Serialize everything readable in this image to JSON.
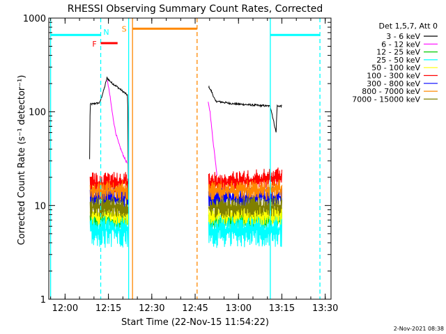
{
  "chart_data": {
    "type": "line",
    "title": "RHESSI Observing Summary Count Rates, Corrected",
    "xlabel": "Start Time (22-Nov-15 11:54:22)",
    "ylabel": "Corrected Count Rate (s⁻¹ detector⁻¹)",
    "xlim": [
      "11:54:22",
      "13:32:00"
    ],
    "ylim": [
      1,
      1000
    ],
    "yscale": "log",
    "x_ticks": [
      "12:00",
      "12:15",
      "12:30",
      "12:45",
      "13:00",
      "13:15",
      "13:30"
    ],
    "y_ticks": [
      "1",
      "10",
      "100",
      "1000"
    ],
    "legend_title": "Det 1,5,7, Att 0",
    "legend_position": "right",
    "timestamp": "2-Nov-2021 08:38",
    "series": [
      {
        "name": "3 - 6 keV",
        "color": "#000000",
        "points": [
          [
            "12:08:30",
            31
          ],
          [
            "12:08:40",
            120
          ],
          [
            "12:12:00",
            125
          ],
          [
            "12:13:30",
            175
          ],
          [
            "12:14:30",
            230
          ],
          [
            "12:16:00",
            205
          ],
          [
            "12:18:00",
            185
          ],
          [
            "12:20:00",
            165
          ],
          [
            "12:21:40",
            150
          ],
          [
            "12:22:00",
            7
          ],
          [
            "12:22:20",
            null
          ],
          [
            "12:49:40",
            185
          ],
          [
            "12:50:40",
            165
          ],
          [
            "12:52:00",
            130
          ],
          [
            "12:58:00",
            122
          ],
          [
            "13:05:00",
            118
          ],
          [
            "13:11:00",
            115
          ],
          [
            "13:13:00",
            60
          ],
          [
            "13:13:20",
            115
          ],
          [
            "13:15:00",
            115
          ]
        ]
      },
      {
        "name": "6 - 12 keV",
        "color": "#ff00ff",
        "points": [
          [
            "12:14:40",
            215
          ],
          [
            "12:15:30",
            150
          ],
          [
            "12:16:30",
            90
          ],
          [
            "12:17:30",
            60
          ],
          [
            "12:18:40",
            45
          ],
          [
            "12:20:00",
            35
          ],
          [
            "12:21:30",
            28
          ],
          [
            "12:21:50",
            null
          ],
          [
            "12:49:30",
            125
          ],
          [
            "12:50:10",
            100
          ],
          [
            "12:51:00",
            55
          ],
          [
            "12:52:00",
            30
          ],
          [
            "12:52:40",
            20
          ]
        ]
      },
      {
        "name": "12 - 25 keV",
        "color": "#00cc00",
        "points": [
          [
            "12:08:40",
            7
          ],
          [
            "12:15:00",
            7
          ],
          [
            "12:22:00",
            7
          ],
          [
            "12:22:20",
            null
          ],
          [
            "12:49:40",
            7
          ],
          [
            "13:00:00",
            7
          ],
          [
            "13:15:00",
            7
          ]
        ]
      },
      {
        "name": "25 - 50 keV",
        "color": "#00ffff",
        "points": [
          [
            "12:08:40",
            5.5
          ],
          [
            "12:15:00",
            5.5
          ],
          [
            "12:22:00",
            5.5
          ],
          [
            "12:22:20",
            null
          ],
          [
            "12:49:40",
            5.5
          ],
          [
            "13:00:00",
            5.5
          ],
          [
            "13:15:00",
            5.5
          ]
        ]
      },
      {
        "name": "50 - 100 keV",
        "color": "#ffff00",
        "points": [
          [
            "12:08:40",
            8
          ],
          [
            "12:15:00",
            8
          ],
          [
            "12:22:00",
            8
          ],
          [
            "12:22:20",
            null
          ],
          [
            "12:49:40",
            8
          ],
          [
            "13:00:00",
            8
          ],
          [
            "13:15:00",
            8
          ]
        ]
      },
      {
        "name": "100 - 300 keV",
        "color": "#ff0000",
        "points": [
          [
            "12:08:40",
            17.5
          ],
          [
            "12:15:00",
            17.5
          ],
          [
            "12:22:00",
            18
          ],
          [
            "12:22:20",
            null
          ],
          [
            "12:49:40",
            17.5
          ],
          [
            "13:00:00",
            18
          ],
          [
            "13:15:00",
            20
          ]
        ]
      },
      {
        "name": "300 - 800 keV",
        "color": "#0000ff",
        "points": [
          [
            "12:08:40",
            12
          ],
          [
            "12:15:00",
            12
          ],
          [
            "12:22:00",
            12
          ],
          [
            "12:22:20",
            null
          ],
          [
            "12:49:40",
            12
          ],
          [
            "13:00:00",
            12
          ],
          [
            "13:15:00",
            12.5
          ]
        ]
      },
      {
        "name": "800 - 7000 keV",
        "color": "#ff8800",
        "points": [
          [
            "12:08:40",
            14.5
          ],
          [
            "12:15:00",
            14.5
          ],
          [
            "12:22:00",
            14.5
          ],
          [
            "12:22:20",
            null
          ],
          [
            "12:49:40",
            14
          ],
          [
            "13:00:00",
            14.5
          ],
          [
            "13:15:00",
            15
          ]
        ]
      },
      {
        "name": "7000 - 15000 keV",
        "color": "#808000",
        "points": [
          [
            "12:08:40",
            9.5
          ],
          [
            "12:15:00",
            9.5
          ],
          [
            "12:22:00",
            9.5
          ],
          [
            "12:22:20",
            null
          ],
          [
            "12:49:40",
            9.5
          ],
          [
            "13:00:00",
            9.5
          ],
          [
            "13:15:00",
            10
          ]
        ]
      }
    ],
    "vertical_lines": [
      {
        "x": "11:55:00",
        "color": "#00ffff",
        "style": "solid"
      },
      {
        "x": "12:12:20",
        "color": "#00ffff",
        "style": "dashed"
      },
      {
        "x": "12:22:00",
        "color": "#00ffff",
        "style": "solid"
      },
      {
        "x": "12:23:20",
        "color": "#ff8800",
        "style": "solid"
      },
      {
        "x": "12:45:40",
        "color": "#ff8800",
        "style": "dashed"
      },
      {
        "x": "13:11:00",
        "color": "#00ffff",
        "style": "solid"
      },
      {
        "x": "13:28:10",
        "color": "#00ffff",
        "style": "dashed"
      }
    ],
    "intervals": [
      {
        "label": "",
        "color": "#00ffff",
        "start": "11:55:00",
        "end": "12:12:20",
        "y": 660
      },
      {
        "label": "N",
        "color": "#00ffff",
        "start": "12:12:20",
        "end": "12:22:00",
        "y": null
      },
      {
        "label": "F",
        "color": "#ff0000",
        "start": "12:12:20",
        "end": "12:18:10",
        "y": 540
      },
      {
        "label": "S",
        "color": "#ff8800",
        "start": "12:23:20",
        "end": "12:45:40",
        "y": 770
      },
      {
        "label": "",
        "color": "#00ffff",
        "start": "13:11:00",
        "end": "13:28:10",
        "y": 660
      }
    ]
  }
}
